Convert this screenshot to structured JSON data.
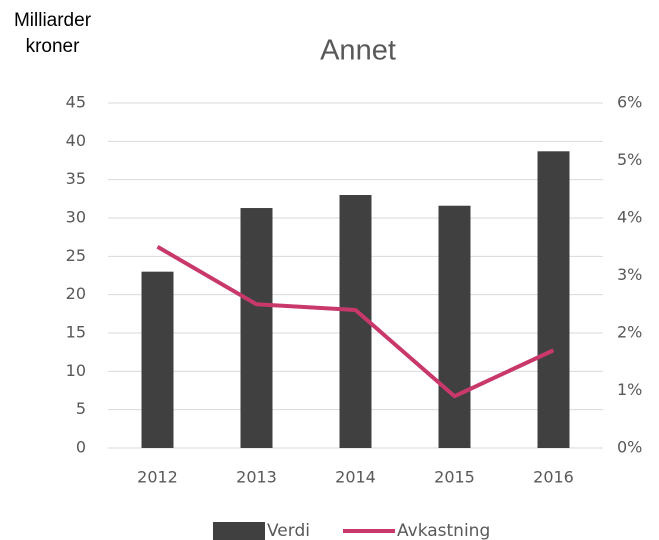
{
  "chart_data": {
    "type": "bar",
    "title": "Annet",
    "y_label": "Milliarder kroner",
    "categories": [
      "2012",
      "2013",
      "2014",
      "2015",
      "2016"
    ],
    "series": [
      {
        "name": "Verdi",
        "type": "bar",
        "color": "#404040",
        "values": [
          23,
          31.3,
          33,
          31.6,
          38.7
        ]
      },
      {
        "name": "Avkastning",
        "type": "line",
        "axis": "y2",
        "color": "#c9386b",
        "values": [
          3.5,
          2.5,
          2.4,
          0.9,
          1.7
        ]
      }
    ],
    "ylim": [
      0,
      45
    ],
    "yticks": [
      0,
      5,
      10,
      15,
      20,
      25,
      30,
      35,
      40,
      45
    ],
    "y2lim": [
      0,
      6
    ],
    "y2ticks": [
      {
        "value": 0,
        "label": "0%"
      },
      {
        "value": 1,
        "label": "1%"
      },
      {
        "value": 2,
        "label": "2%"
      },
      {
        "value": 3,
        "label": "3%"
      },
      {
        "value": 4,
        "label": "4%"
      },
      {
        "value": 5,
        "label": "5%"
      },
      {
        "value": 6,
        "label": "6%"
      }
    ],
    "grid": true,
    "legend": "bottom"
  }
}
